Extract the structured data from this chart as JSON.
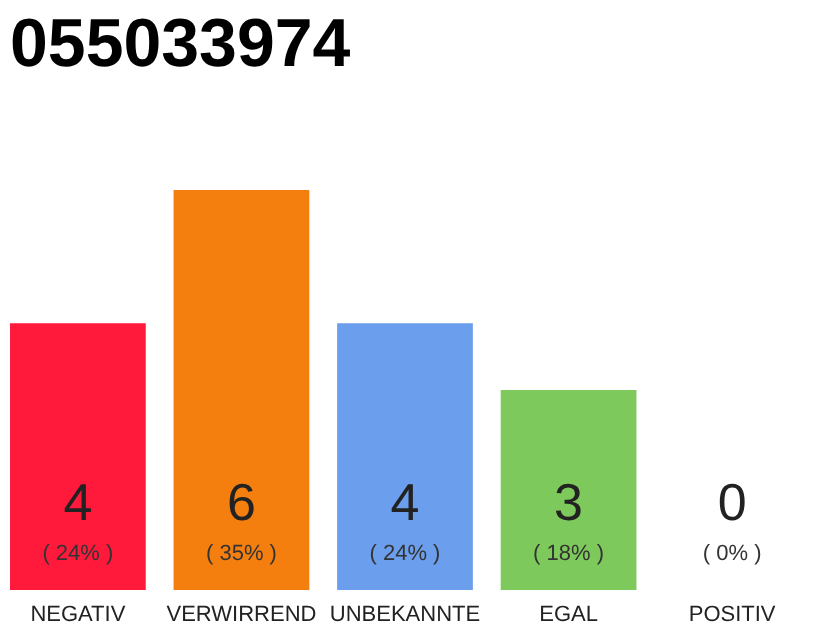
{
  "chart_data": {
    "type": "bar",
    "title": "055033974",
    "categories": [
      "NEGATIV",
      "VERWIRREND",
      "UNBEKANNTE",
      "EGAL",
      "POSITIV"
    ],
    "values": [
      4,
      6,
      4,
      3,
      0
    ],
    "colors": [
      "#ff1a3c",
      "#f57f0e",
      "#6b9eed",
      "#7ec95c",
      "#b0b0b0"
    ],
    "data_labels": true,
    "annotations": [
      "( 24% )",
      "( 35% )",
      "( 24% )",
      "( 18% )",
      "( 0% )"
    ],
    "tick_labels": "x",
    "grid": false
  }
}
